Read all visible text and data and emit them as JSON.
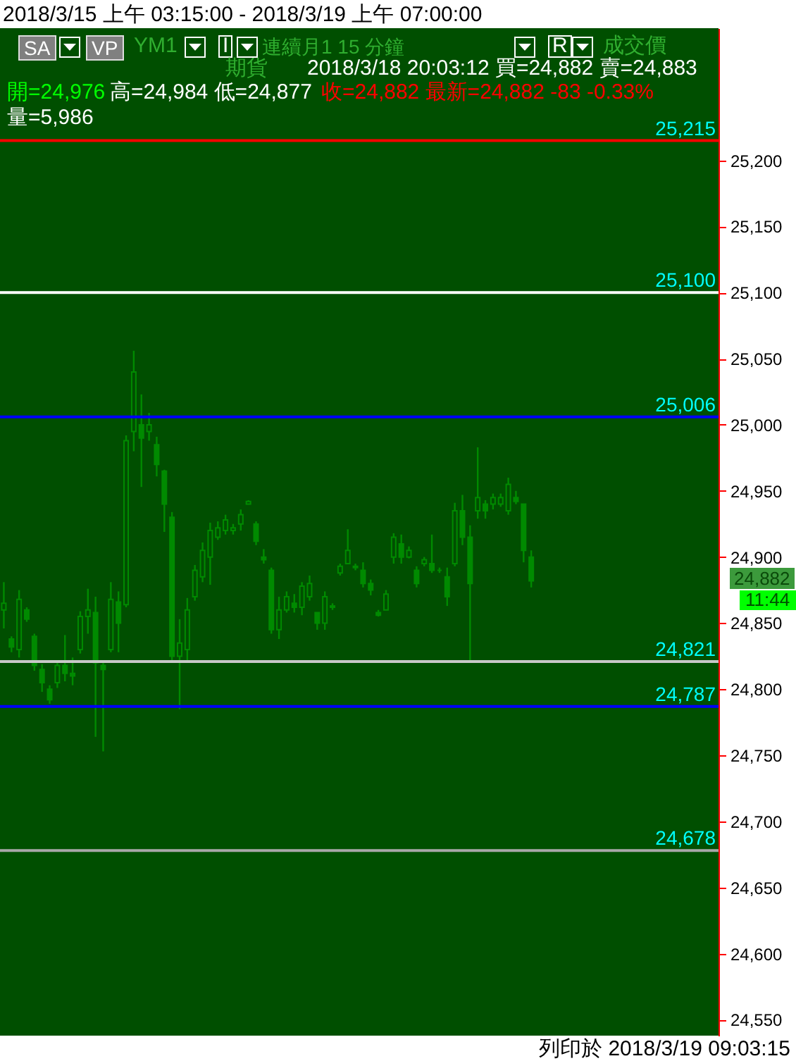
{
  "chart_data": {
    "type": "candlestick",
    "title": "2018/3/15 上午 03:15:00 - 2018/3/19 上午 07:00:00",
    "color": "#008a00",
    "tick_labels": "y",
    "categories": [
      null,
      null,
      null,
      null,
      null,
      null,
      null,
      null,
      null,
      null,
      null,
      null,
      null,
      null,
      null,
      null,
      null,
      null,
      null,
      null,
      null,
      null,
      null,
      null,
      null,
      null,
      null,
      null,
      null,
      null,
      null,
      null,
      null,
      null,
      null,
      null,
      null,
      null,
      null,
      null,
      null,
      null,
      null,
      null,
      null,
      null,
      null,
      null,
      null,
      null,
      null,
      null,
      null,
      null,
      null,
      null,
      null,
      null,
      null,
      null,
      null,
      null,
      null,
      null,
      null,
      null,
      null,
      null,
      null,
      null,
      null,
      null,
      null,
      null,
      null,
      null,
      null,
      null,
      null,
      null,
      null,
      null,
      null,
      null,
      null,
      null,
      null,
      null,
      null,
      null,
      null,
      null,
      null,
      null
    ],
    "ohlc": [
      [
        24860,
        24881,
        24846,
        24865
      ],
      [
        24838,
        24840,
        24828,
        24832
      ],
      [
        24830,
        24875,
        24824,
        24868
      ],
      [
        24860,
        24862,
        24851,
        24853
      ],
      [
        24840,
        24842,
        24814,
        24818
      ],
      [
        24815,
        24819,
        24798,
        24805
      ],
      [
        24800,
        24803,
        24789,
        24792
      ],
      [
        24805,
        24821,
        24801,
        24818
      ],
      [
        24818,
        24841,
        24806,
        24812
      ],
      [
        24812,
        24824,
        24803,
        24810
      ],
      [
        24830,
        24859,
        24827,
        24855
      ],
      [
        24855,
        24876,
        24842,
        24860
      ],
      [
        24858,
        24870,
        24764,
        24820
      ],
      [
        24818,
        24821,
        24753,
        24815
      ],
      [
        24830,
        24881,
        24828,
        24868
      ],
      [
        24866,
        24874,
        24828,
        24850
      ],
      [
        24864,
        24992,
        24862,
        24988
      ],
      [
        24995,
        25056,
        24980,
        25040
      ],
      [
        25000,
        25023,
        24953,
        24990
      ],
      [
        24995,
        25009,
        24988,
        25000
      ],
      [
        24985,
        24991,
        24961,
        24970
      ],
      [
        24965,
        24966,
        24919,
        24940
      ],
      [
        24930,
        24934,
        24821,
        24825
      ],
      [
        24825,
        24853,
        24785,
        24835
      ],
      [
        24830,
        24869,
        24822,
        24860
      ],
      [
        24870,
        24894,
        24867,
        24890
      ],
      [
        24885,
        24911,
        24881,
        24905
      ],
      [
        24900,
        24926,
        24879,
        24920
      ],
      [
        24915,
        24927,
        24913,
        24922
      ],
      [
        24920,
        24932,
        24917,
        24928
      ],
      [
        24920,
        24925,
        24917,
        24922
      ],
      [
        24925,
        24936,
        24920,
        24932
      ],
      [
        24940,
        24943,
        24940,
        24942
      ],
      [
        24925,
        24927,
        24909,
        24912
      ],
      [
        24900,
        24906,
        24895,
        24898
      ],
      [
        24890,
        24892,
        24842,
        24845
      ],
      [
        24845,
        24870,
        24838,
        24860
      ],
      [
        24860,
        24874,
        24858,
        24870
      ],
      [
        24865,
        24872,
        24858,
        24862
      ],
      [
        24862,
        24881,
        24856,
        24878
      ],
      [
        24870,
        24886,
        24867,
        24880
      ],
      [
        24858,
        24858,
        24845,
        24850
      ],
      [
        24850,
        24874,
        24845,
        24870
      ],
      [
        24862,
        24865,
        24860,
        24863
      ],
      [
        24888,
        24895,
        24886,
        24893
      ],
      [
        24895,
        24921,
        24895,
        24905
      ],
      [
        24892,
        24895,
        24890,
        24893
      ],
      [
        24890,
        24896,
        24877,
        24880
      ],
      [
        24880,
        24883,
        24871,
        24875
      ],
      [
        24858,
        24860,
        24855,
        24856
      ],
      [
        24860,
        24875,
        24860,
        24872
      ],
      [
        24900,
        24918,
        24895,
        24915
      ],
      [
        24910,
        24917,
        24895,
        24900
      ],
      [
        24900,
        24908,
        24899,
        24905
      ],
      [
        24890,
        24893,
        24877,
        24880
      ],
      [
        24895,
        24900,
        24893,
        24898
      ],
      [
        24895,
        24917,
        24888,
        24890
      ],
      [
        24890,
        24892,
        24888,
        24890
      ],
      [
        24885,
        24892,
        24863,
        24870
      ],
      [
        24895,
        24941,
        24893,
        24935
      ],
      [
        24935,
        24947,
        24909,
        24915
      ],
      [
        24915,
        24924,
        24821,
        24880
      ],
      [
        24935,
        24983,
        24929,
        24945
      ],
      [
        24940,
        24943,
        24929,
        24935
      ],
      [
        24940,
        24948,
        24936,
        24945
      ],
      [
        24940,
        24948,
        24938,
        24945
      ],
      [
        24935,
        24960,
        24932,
        24955
      ],
      [
        24945,
        24950,
        24940,
        24942
      ],
      [
        24940,
        24940,
        24896,
        24905
      ],
      [
        24900,
        24905,
        24877,
        24882
      ],
      null,
      null,
      null,
      null,
      null,
      null,
      null,
      null,
      null,
      null,
      null,
      null,
      null,
      null,
      null,
      null,
      null,
      null,
      null,
      null,
      null,
      null,
      null,
      null
    ],
    "ylim": [
      24538,
      25300
    ],
    "yticks": [
      {
        "value": 24550,
        "label": "24,550"
      },
      {
        "value": 24600,
        "label": "24,600"
      },
      {
        "value": 24650,
        "label": "24,650"
      },
      {
        "value": 24700,
        "label": "24,700"
      },
      {
        "value": 24750,
        "label": "24,750"
      },
      {
        "value": 24800,
        "label": "24,800"
      },
      {
        "value": 24850,
        "label": "24,850"
      },
      {
        "value": 24900,
        "label": "24,900"
      },
      {
        "value": 24950,
        "label": "24,950"
      },
      {
        "value": 25000,
        "label": "25,000"
      },
      {
        "value": 25050,
        "label": "25,050"
      },
      {
        "value": 25100,
        "label": "25,100"
      },
      {
        "value": 25150,
        "label": "25,150"
      },
      {
        "value": 25200,
        "label": "25,200"
      }
    ],
    "ref_lines": [
      {
        "axis": "y",
        "value": 25215,
        "label": "25,215",
        "color": "#ff0000"
      },
      {
        "axis": "y",
        "value": 25100,
        "label": "25,100",
        "color": "#ffffff"
      },
      {
        "axis": "y",
        "value": 25006,
        "label": "25,006",
        "color": "#0000ff"
      },
      {
        "axis": "y",
        "value": 24821,
        "label": "24,821",
        "color": "#c8c8c8"
      },
      {
        "axis": "y",
        "value": 24787,
        "label": "24,787",
        "color": "#0000ff"
      },
      {
        "axis": "y",
        "value": 24678,
        "label": "24,678",
        "color": "#a8a8a8"
      }
    ],
    "annotations": [
      "SA",
      "VP",
      "YM1",
      "I",
      "連續月1 15 分鐘",
      "R",
      "成交價",
      "期貨",
      "2018/3/18 20:03:12 買=24,882 賣=24,883",
      "開=24,976",
      "高=24,984 低=24,877",
      "收=24,882 最新=24,882 -83 -0.33%",
      "量=5,986",
      "24,882",
      "11:44",
      "列印於 2018/3/19 09:03:15"
    ]
  }
}
